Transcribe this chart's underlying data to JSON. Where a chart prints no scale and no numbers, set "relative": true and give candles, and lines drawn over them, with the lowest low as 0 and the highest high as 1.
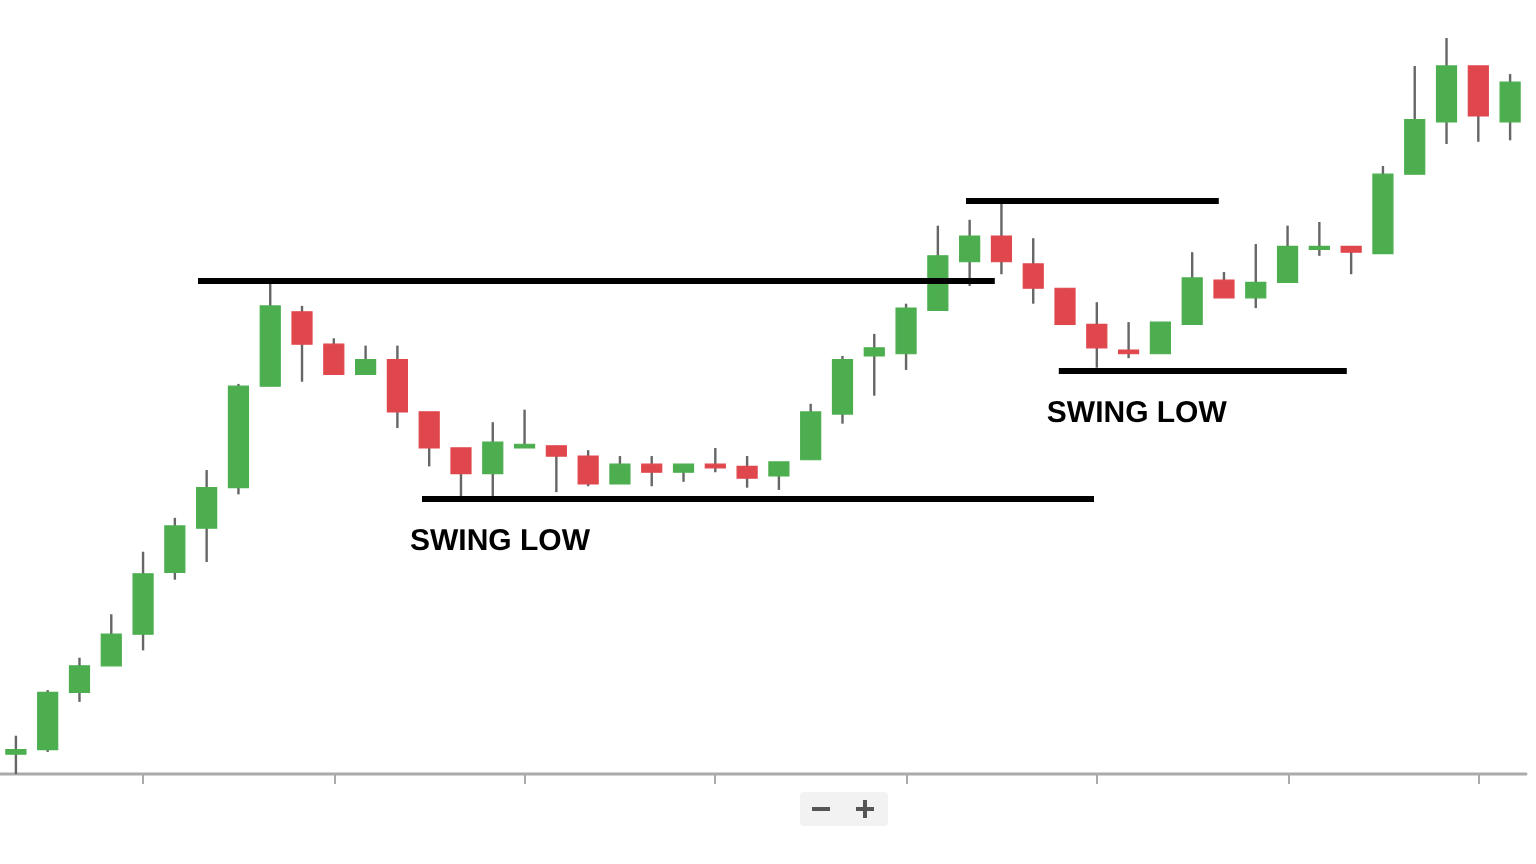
{
  "chart_data": {
    "type": "candlestick",
    "relative": true,
    "grid": false,
    "categories": [
      null,
      null,
      null,
      null,
      null,
      null,
      null,
      null,
      null,
      null,
      null,
      null,
      null,
      null,
      null,
      null,
      null,
      null,
      null,
      null,
      null,
      null,
      null,
      null,
      null,
      null,
      null,
      null,
      null,
      null,
      null,
      null,
      null,
      null,
      null,
      null,
      null,
      null,
      null,
      null,
      null,
      null,
      null,
      null,
      null,
      null,
      null,
      null
    ],
    "ohlc": [
      [
        0.027,
        0.052,
        0,
        0.033
      ],
      [
        0.033,
        0.114,
        0.03,
        0.111
      ],
      [
        0.111,
        0.158,
        0.098,
        0.147
      ],
      [
        0.147,
        0.217,
        0.147,
        0.19
      ],
      [
        0.19,
        0.302,
        0.168,
        0.272
      ],
      [
        0.274,
        0.348,
        0.264,
        0.337
      ],
      [
        0.334,
        0.413,
        0.288,
        0.389
      ],
      [
        0.389,
        0.53,
        0.38,
        0.527
      ],
      [
        0.527,
        0.671,
        0.527,
        0.636
      ],
      [
        0.628,
        0.636,
        0.533,
        0.584
      ],
      [
        0.584,
        0.592,
        0.543,
        0.543
      ],
      [
        0.543,
        0.582,
        0.543,
        0.563
      ],
      [
        0.563,
        0.582,
        0.47,
        0.492
      ],
      [
        0.492,
        0.492,
        0.418,
        0.443
      ],
      [
        0.443,
        0.443,
        0.375,
        0.408
      ],
      [
        0.408,
        0.478,
        0.375,
        0.451
      ],
      [
        0.443,
        0.495,
        0.443,
        0.448
      ],
      [
        0.446,
        0.446,
        0.383,
        0.432
      ],
      [
        0.432,
        0.44,
        0.391,
        0.394
      ],
      [
        0.394,
        0.432,
        0.394,
        0.421
      ],
      [
        0.421,
        0.432,
        0.391,
        0.41
      ],
      [
        0.41,
        0.421,
        0.397,
        0.421
      ],
      [
        0.421,
        0.443,
        0.41,
        0.416
      ],
      [
        0.418,
        0.432,
        0.389,
        0.402
      ],
      [
        0.405,
        0.424,
        0.386,
        0.424
      ],
      [
        0.427,
        0.503,
        0.427,
        0.492
      ],
      [
        0.489,
        0.568,
        0.476,
        0.563
      ],
      [
        0.568,
        0.598,
        0.514,
        0.579
      ],
      [
        0.571,
        0.639,
        0.549,
        0.633
      ],
      [
        0.63,
        0.745,
        0.63,
        0.704
      ],
      [
        0.696,
        0.753,
        0.663,
        0.731
      ],
      [
        0.731,
        0.777,
        0.679,
        0.696
      ],
      [
        0.693,
        0.728,
        0.639,
        0.66
      ],
      [
        0.66,
        0.66,
        0.611,
        0.611
      ],
      [
        0.611,
        0.641,
        0.552,
        0.579
      ],
      [
        0.576,
        0.614,
        0.565,
        0.571
      ],
      [
        0.571,
        0.614,
        0.571,
        0.614
      ],
      [
        0.611,
        0.709,
        0.611,
        0.674
      ],
      [
        0.671,
        0.682,
        0.647,
        0.647
      ],
      [
        0.647,
        0.72,
        0.633,
        0.668
      ],
      [
        0.668,
        0.745,
        0.668,
        0.717
      ],
      [
        0.715,
        0.75,
        0.704,
        0.717
      ],
      [
        0.717,
        0.717,
        0.679,
        0.709
      ],
      [
        0.707,
        0.826,
        0.707,
        0.815
      ],
      [
        0.815,
        0.962,
        0.815,
        0.889
      ],
      [
        0.886,
        1,
        0.856,
        0.962
      ],
      [
        0.962,
        0.962,
        0.859,
        0.894
      ],
      [
        0.886,
        0.951,
        0.861,
        0.94
      ]
    ],
    "colors": [
      "#4cae4f",
      "#4cae4f",
      "#4cae4f",
      "#4cae4f",
      "#4cae4f",
      "#4cae4f",
      "#4cae4f",
      "#4cae4f",
      "#4cae4f",
      "#e0474c",
      "#e0474c",
      "#4cae4f",
      "#e0474c",
      "#e0474c",
      "#e0474c",
      "#4cae4f",
      "#4cae4f",
      "#e0474c",
      "#e0474c",
      "#4cae4f",
      "#e0474c",
      "#4cae4f",
      "#e0474c",
      "#e0474c",
      "#4cae4f",
      "#4cae4f",
      "#4cae4f",
      "#4cae4f",
      "#4cae4f",
      "#4cae4f",
      "#4cae4f",
      "#e0474c",
      "#e0474c",
      "#e0474c",
      "#e0474c",
      "#e0474c",
      "#4cae4f",
      "#4cae4f",
      "#e0474c",
      "#4cae4f",
      "#4cae4f",
      "#4cae4f",
      "#e0474c",
      "#4cae4f",
      "#4cae4f",
      "#4cae4f",
      "#e0474c",
      "#4cae4f"
    ],
    "ref_lines": [
      {
        "axis": "y",
        "value": 0.671,
        "color": "#000000",
        "line_style": "solid"
      },
      {
        "axis": "y",
        "value": 0.78,
        "color": "#000000",
        "line_style": "solid"
      },
      {
        "axis": "y",
        "value": 0.375,
        "label": "SWING LOW",
        "color": "#000000",
        "line_style": "solid"
      },
      {
        "axis": "y",
        "value": 0.549,
        "label": "SWING LOW",
        "color": "#000000",
        "line_style": "solid"
      }
    ]
  }
}
